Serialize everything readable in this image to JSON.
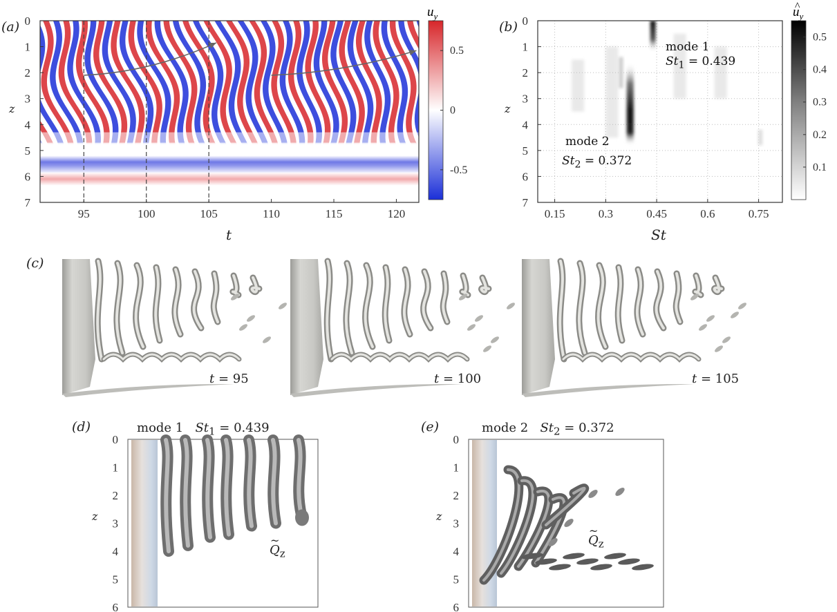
{
  "panel_labels": {
    "a": "(a)",
    "b": "(b)",
    "c": "(c)",
    "d": "(d)",
    "e": "(e)"
  },
  "chart_data": [
    {
      "type": "heatmap",
      "panel": "(a)",
      "xlabel": "t",
      "ylabel": "z",
      "xlim": [
        91.5,
        121.8
      ],
      "ylim": [
        7,
        0
      ],
      "x_ticks": [
        "95",
        "100",
        "105",
        "110",
        "115",
        "120"
      ],
      "x_tick_values": [
        95,
        100,
        105,
        110,
        115,
        120
      ],
      "y_ticks": [
        "0",
        "1",
        "2",
        "3",
        "4",
        "5",
        "6",
        "7"
      ],
      "colorbar_label": "u_y",
      "colorbar_ticks": [
        "0.5",
        "0",
        "-0.5"
      ],
      "colorbar_tick_values": [
        0.5,
        0,
        -0.5
      ],
      "colorbar_range": [
        -0.75,
        0.75
      ],
      "colors": {
        "positive": "#d7262a",
        "negative": "#1b2fd8",
        "zero": "#ffffff"
      },
      "dashed_lines_t": [
        95,
        100,
        105
      ],
      "arrows": [
        {
          "from": [
            95,
            2.1
          ],
          "to": [
            105.6,
            0.85
          ]
        },
        {
          "from": [
            110,
            2.1
          ],
          "to": [
            121.6,
            1.15
          ]
        }
      ]
    },
    {
      "type": "heatmap",
      "panel": "(b)",
      "xlabel": "St",
      "ylabel": "z",
      "xlim": [
        0.1,
        0.82
      ],
      "ylim": [
        7,
        0
      ],
      "x_ticks": [
        "0.15",
        "0.3",
        "0.45",
        "0.6",
        "0.75"
      ],
      "x_tick_values": [
        0.15,
        0.3,
        0.45,
        0.6,
        0.75
      ],
      "y_ticks": [
        "0",
        "1",
        "2",
        "3",
        "4",
        "5",
        "6",
        "7"
      ],
      "colorbar_label": "û_y",
      "colorbar_ticks": [
        "0.5",
        "0.4",
        "0.3",
        "0.2",
        "0.1"
      ],
      "colorbar_tick_values": [
        0.5,
        0.4,
        0.3,
        0.2,
        0.1
      ],
      "colorbar_range": [
        0,
        0.55
      ],
      "grid": true,
      "modes": [
        {
          "label": "mode 1",
          "st_label": "St",
          "st_sub": "1",
          "st_value": "= 0.439",
          "St": 0.439,
          "z_range": [
            0,
            1.2
          ]
        },
        {
          "label": "mode 2",
          "st_label": "St",
          "st_sub": "2",
          "st_value": "= 0.372",
          "St": 0.372,
          "z_range": [
            1.6,
            4.8
          ]
        }
      ]
    }
  ],
  "panel_c": {
    "snapshots": [
      {
        "t_label": "t",
        "t_value": "= 95"
      },
      {
        "t_label": "t",
        "t_value": "= 100"
      },
      {
        "t_label": "t",
        "t_value": "= 105"
      }
    ]
  },
  "panel_d": {
    "title_mode": "mode 1",
    "st_label": "St",
    "st_sub": "1",
    "st_value": "= 0.439",
    "ylabel": "z",
    "y_ticks": [
      "0",
      "1",
      "2",
      "3",
      "4",
      "5",
      "6"
    ],
    "q_label": "Q",
    "q_sub": "z"
  },
  "panel_e": {
    "title_mode": "mode 2",
    "st_label": "St",
    "st_sub": "2",
    "st_value": "= 0.372",
    "ylabel": "z",
    "y_ticks": [
      "0",
      "1",
      "2",
      "3",
      "4",
      "5",
      "6"
    ],
    "q_label": "Q",
    "q_sub": "z"
  }
}
